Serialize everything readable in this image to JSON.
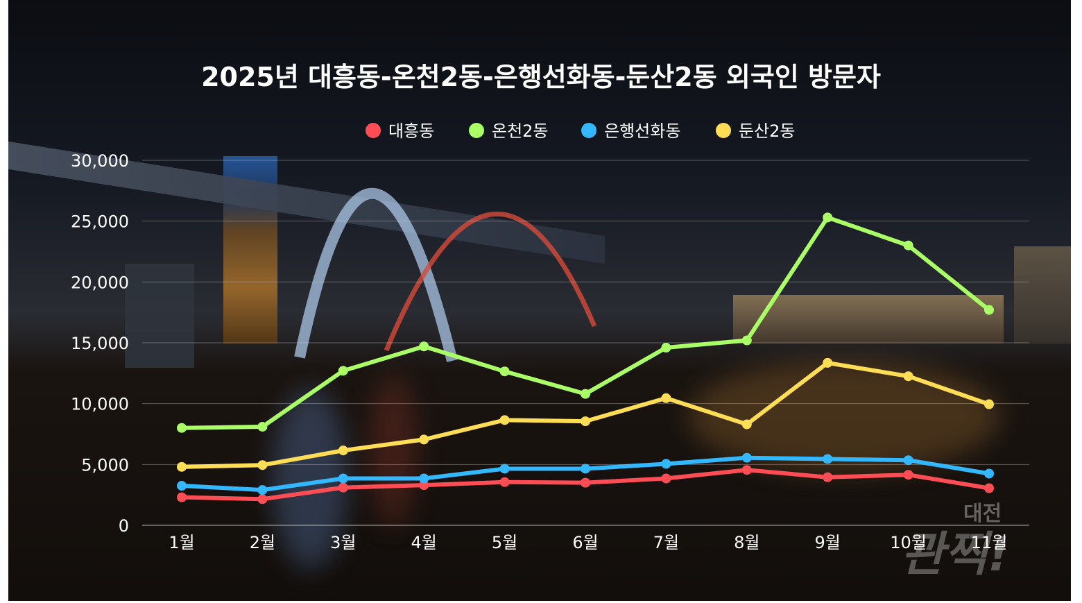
{
  "chart_data": {
    "type": "line",
    "title": "2025년 대흥동-온천2동-은행선화동-둔산2동 외국인 방문자",
    "categories": [
      "1월",
      "2월",
      "3월",
      "4월",
      "5월",
      "6월",
      "7월",
      "8월",
      "9월",
      "10월",
      "11월"
    ],
    "ylim": [
      0,
      30000
    ],
    "yticks": [
      "0",
      "5,000",
      "10,000",
      "15,000",
      "20,000",
      "25,000",
      "30,000"
    ],
    "grid": true,
    "legend_position": "top",
    "series": [
      {
        "name": "대흥동",
        "color": "#ff4d55",
        "values": [
          2300,
          2150,
          3100,
          3300,
          3550,
          3500,
          3850,
          4550,
          3950,
          4150,
          3050
        ]
      },
      {
        "name": "온천2동",
        "color": "#aaff66",
        "values": [
          8000,
          8100,
          12700,
          14700,
          12650,
          10800,
          14600,
          15200,
          25300,
          23000,
          17700
        ]
      },
      {
        "name": "은행선화동",
        "color": "#33b8ff",
        "values": [
          3250,
          2900,
          3850,
          3850,
          4650,
          4650,
          5050,
          5550,
          5450,
          5350,
          4250
        ]
      },
      {
        "name": "둔산2동",
        "color": "#ffdd55",
        "values": [
          4800,
          4950,
          6150,
          7050,
          8650,
          8550,
          10450,
          8300,
          13350,
          12250,
          9950
        ]
      }
    ]
  },
  "watermark": {
    "text_top": "대전",
    "text_main": "관찍!"
  }
}
